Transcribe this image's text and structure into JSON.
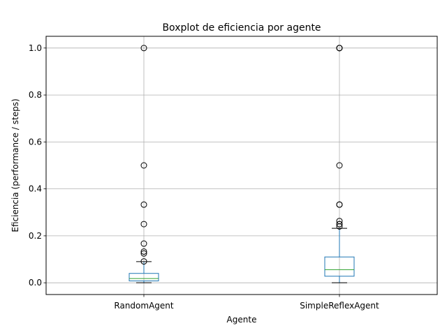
{
  "chart_data": {
    "type": "boxplot",
    "title": "Boxplot de eficiencia por agente",
    "xlabel": "Agente",
    "ylabel": "Eficiencia (performance / steps)",
    "ylim": [
      -0.05,
      1.05
    ],
    "yticks": [
      0.0,
      0.2,
      0.4,
      0.6,
      0.8,
      1.0
    ],
    "ytick_labels": [
      "0.0",
      "0.2",
      "0.4",
      "0.6",
      "0.8",
      "1.0"
    ],
    "grid": true,
    "categories": [
      "RandomAgent",
      "SimpleReflexAgent"
    ],
    "series": [
      {
        "whisker_low": 0.0,
        "q1": 0.008,
        "median": 0.018,
        "q3": 0.04,
        "whisker_high": 0.09,
        "outliers": [
          1.0,
          0.5,
          0.333,
          0.25,
          0.167,
          0.133,
          0.125,
          0.091
        ]
      },
      {
        "whisker_low": 0.0,
        "q1": 0.028,
        "median": 0.056,
        "q3": 0.11,
        "whisker_high": 0.232,
        "outliers": [
          1.0,
          1.0,
          1.0,
          0.5,
          0.333,
          0.333,
          0.263,
          0.25,
          0.25,
          0.24
        ]
      }
    ],
    "colors": {
      "box": "#1f77b4",
      "median": "#2ca02c",
      "whisker": "#1f77b4",
      "cap": "#000000",
      "outlier": "#000000",
      "grid": "#b0b0b0"
    }
  }
}
